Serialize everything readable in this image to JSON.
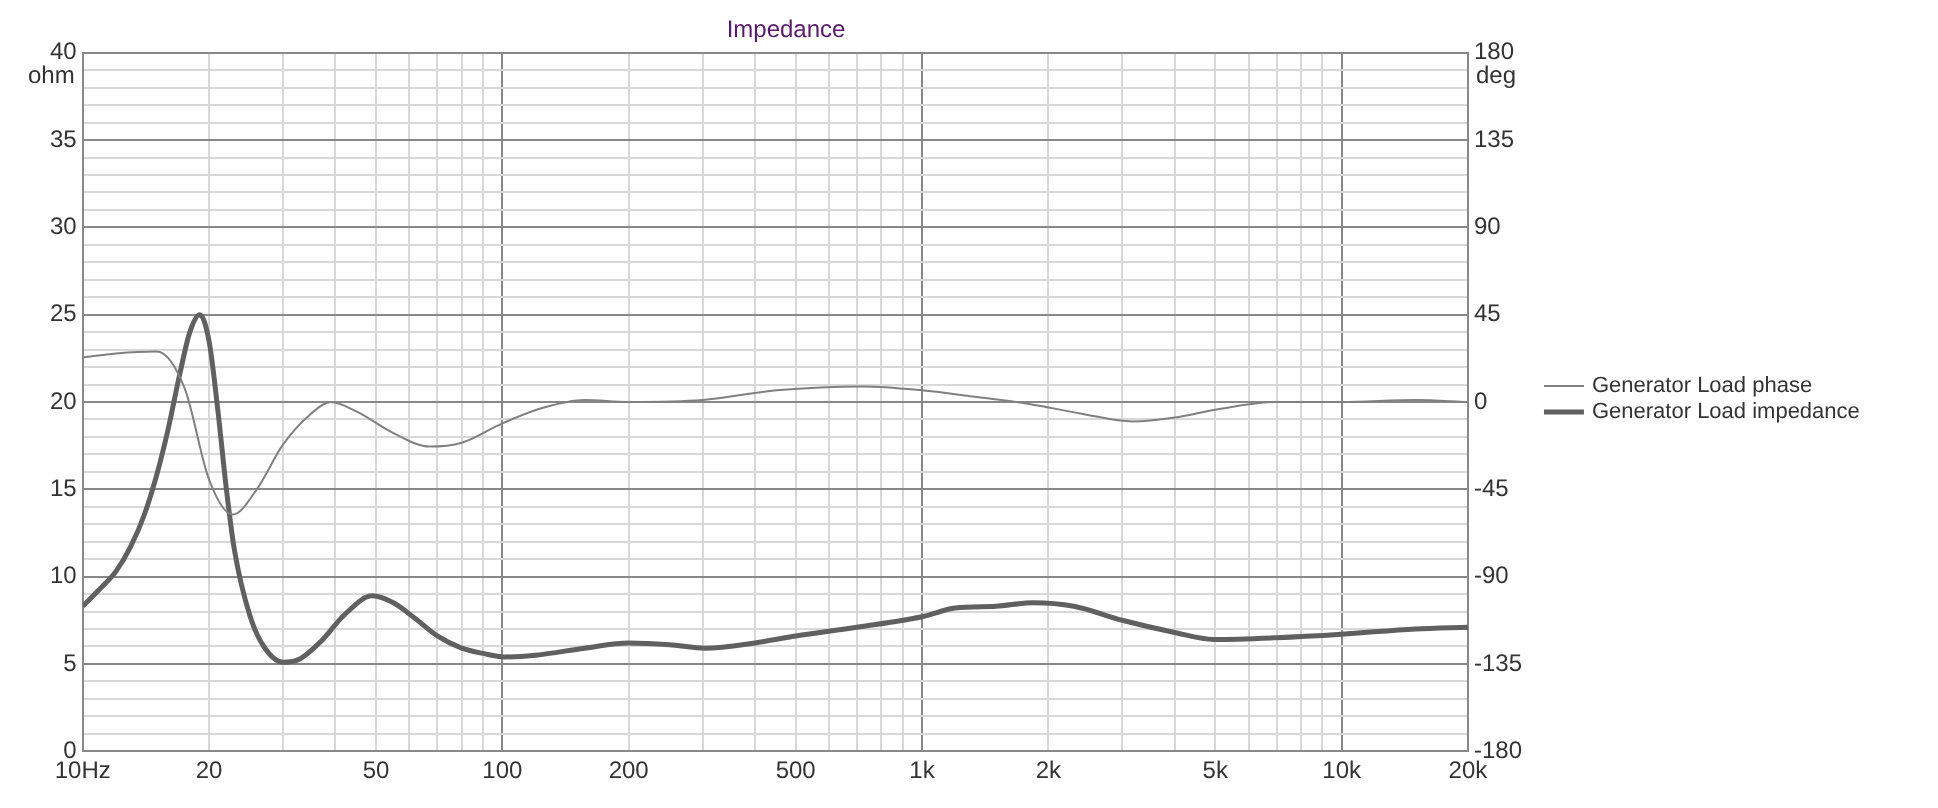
{
  "chart_data": {
    "type": "line",
    "title": "Impedance",
    "ylabel": "ohm",
    "y2label": "deg",
    "xlim": [
      10,
      20000
    ],
    "xticks": [
      {
        "value": 10,
        "label": "10Hz"
      },
      20,
      {
        "value": 30,
        "label": null
      },
      {
        "value": 40,
        "label": null
      },
      50,
      {
        "value": 60,
        "label": null
      },
      {
        "value": 70,
        "label": null
      },
      {
        "value": 80,
        "label": null
      },
      {
        "value": 90,
        "label": null
      },
      100,
      200,
      {
        "value": 300,
        "label": null
      },
      {
        "value": 400,
        "label": null
      },
      500,
      {
        "value": 600,
        "label": null
      },
      {
        "value": 700,
        "label": null
      },
      {
        "value": 800,
        "label": null
      },
      {
        "value": 900,
        "label": null
      },
      {
        "value": 1000,
        "label": "1k"
      },
      {
        "value": 2000,
        "label": "2k"
      },
      {
        "value": 3000,
        "label": null
      },
      {
        "value": 4000,
        "label": null
      },
      {
        "value": 5000,
        "label": "5k"
      },
      {
        "value": 6000,
        "label": null
      },
      {
        "value": 7000,
        "label": null
      },
      {
        "value": 8000,
        "label": null
      },
      {
        "value": 9000,
        "label": null
      },
      {
        "value": 10000,
        "label": "10k"
      },
      {
        "value": 20000,
        "label": "20k"
      }
    ],
    "ylim": [
      0,
      40
    ],
    "yticks": [
      0,
      {
        "value": 1,
        "label": null
      },
      {
        "value": 2,
        "label": null
      },
      {
        "value": 3,
        "label": null
      },
      {
        "value": 4,
        "label": null
      },
      5,
      {
        "value": 6,
        "label": null
      },
      {
        "value": 7,
        "label": null
      },
      {
        "value": 8,
        "label": null
      },
      {
        "value": 9,
        "label": null
      },
      10,
      {
        "value": 11,
        "label": null
      },
      {
        "value": 12,
        "label": null
      },
      {
        "value": 13,
        "label": null
      },
      {
        "value": 14,
        "label": null
      },
      15,
      {
        "value": 16,
        "label": null
      },
      {
        "value": 17,
        "label": null
      },
      {
        "value": 18,
        "label": null
      },
      {
        "value": 19,
        "label": null
      },
      20,
      {
        "value": 21,
        "label": null
      },
      {
        "value": 22,
        "label": null
      },
      {
        "value": 23,
        "label": null
      },
      {
        "value": 24,
        "label": null
      },
      25,
      {
        "value": 26,
        "label": null
      },
      {
        "value": 27,
        "label": null
      },
      {
        "value": 28,
        "label": null
      },
      {
        "value": 29,
        "label": null
      },
      30,
      {
        "value": 31,
        "label": null
      },
      {
        "value": 32,
        "label": null
      },
      {
        "value": 33,
        "label": null
      },
      {
        "value": 34,
        "label": null
      },
      35,
      {
        "value": 36,
        "label": null
      },
      {
        "value": 37,
        "label": null
      },
      {
        "value": 38,
        "label": null
      },
      {
        "value": 39,
        "label": null
      },
      40
    ],
    "y2lim": [
      -180,
      180
    ],
    "y2ticks": [
      -180,
      -135,
      -90,
      -45,
      0,
      45,
      90,
      135,
      180
    ],
    "log": "x",
    "grid": true,
    "legend": "right",
    "marker": "none",
    "line_style": "solid",
    "series": [
      {
        "name": "Generator Load phase",
        "color": "#808080",
        "axis": "y2",
        "x": [
          10,
          12,
          15,
          17.5,
          20,
          22.8,
          26,
          30,
          35,
          39,
          45,
          55,
          67,
          80,
          100,
          125,
          157,
          200,
          300,
          450,
          726,
          1000,
          1300,
          1800,
          2400,
          3180,
          4000,
          5000,
          7000,
          10000,
          15000,
          20000
        ],
        "values": [
          23,
          25,
          26,
          7,
          -40,
          -58,
          -45,
          -22,
          -6,
          0,
          -5,
          -16,
          -23,
          -21,
          -11,
          -3,
          1,
          0,
          1,
          6,
          8,
          6,
          3,
          -1,
          -6,
          -10,
          -8,
          -4,
          0,
          0,
          1,
          0
        ]
      },
      {
        "name": "Generator Load impedance",
        "color": "#606060",
        "x": [
          10,
          11,
          12,
          13,
          14,
          15,
          16,
          17,
          18,
          19,
          20,
          21,
          22,
          23,
          25,
          27,
          30,
          33,
          37,
          42,
          49,
          55,
          62,
          70,
          80,
          90,
          101,
          120,
          157,
          200,
          250,
          304,
          400,
          500,
          700,
          1000,
          1200,
          1500,
          1840,
          2300,
          3000,
          4000,
          4960,
          7000,
          10000,
          15000,
          20000
        ],
        "values": [
          8.3,
          9.3,
          10.3,
          11.7,
          13.5,
          15.8,
          18.5,
          21.5,
          24,
          25,
          23.5,
          19.5,
          15,
          11.5,
          7.8,
          6,
          5.1,
          5.3,
          6.3,
          7.8,
          8.9,
          8.5,
          7.6,
          6.6,
          5.9,
          5.6,
          5.4,
          5.5,
          5.9,
          6.2,
          6.1,
          5.9,
          6.2,
          6.6,
          7.1,
          7.7,
          8.2,
          8.3,
          8.5,
          8.3,
          7.5,
          6.8,
          6.4,
          6.5,
          6.7,
          7,
          7.1
        ]
      }
    ]
  }
}
